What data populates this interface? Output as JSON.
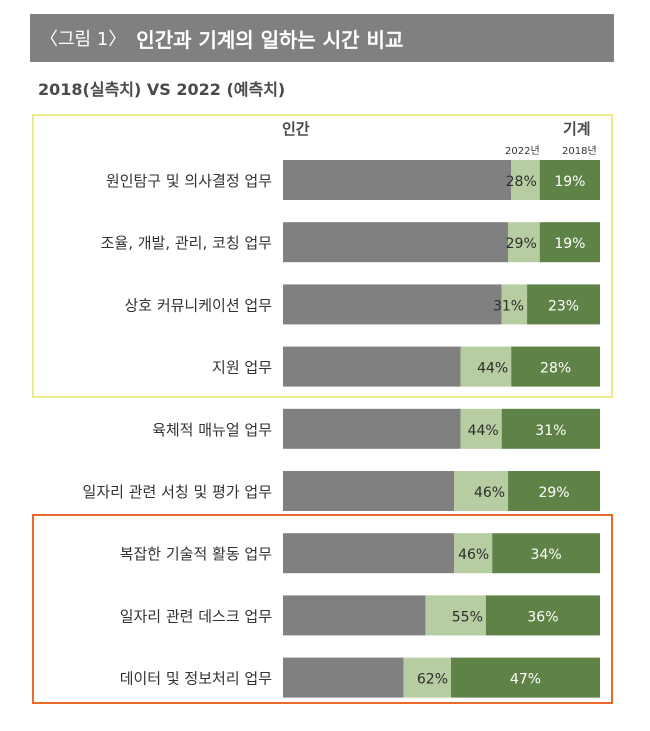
{
  "header": {
    "figure_label": "〈그림 1〉",
    "title": "인간과 기계의 일하는 시간 비교"
  },
  "subtitle": "2018(실측치) VS 2022 (예측치)",
  "chart_data": {
    "type": "bar",
    "orientation": "horizontal",
    "xlim": [
      0,
      100
    ],
    "column_labels": {
      "human": "인간",
      "machine": "기계"
    },
    "legend": {
      "y2022": "2022년",
      "y2018": "2018년"
    },
    "categories": [
      "원인탐구 및 의사결정 업무",
      "조율, 개발, 관리, 코칭 업무",
      "상호 커뮤니케이션 업무",
      "지원 업무",
      "육체적 매뉴얼 업무",
      "일자리 관련 서칭 및 평가 업무",
      "복잡한 기술적 활동 업무",
      "일자리 관련 데스크 업무",
      "데이터 및 정보처리 업무"
    ],
    "series": [
      {
        "name": "2022년",
        "values": [
          28,
          29,
          31,
          44,
          44,
          46,
          46,
          55,
          62
        ],
        "labels": [
          "28%",
          "29%",
          "31%",
          "44%",
          "44%",
          "46%",
          "46%",
          "55%",
          "62%"
        ]
      },
      {
        "name": "2018년",
        "values": [
          19,
          19,
          23,
          28,
          31,
          29,
          34,
          36,
          47
        ],
        "labels": [
          "19%",
          "19%",
          "23%",
          "28%",
          "31%",
          "29%",
          "34%",
          "36%",
          "47%"
        ]
      }
    ],
    "colors": {
      "human": "#808080",
      "y2022": "#b6cca1",
      "y2018": "#5f8246",
      "highlight_top": "#ecec8c",
      "highlight_bottom": "#e96a2a"
    }
  }
}
